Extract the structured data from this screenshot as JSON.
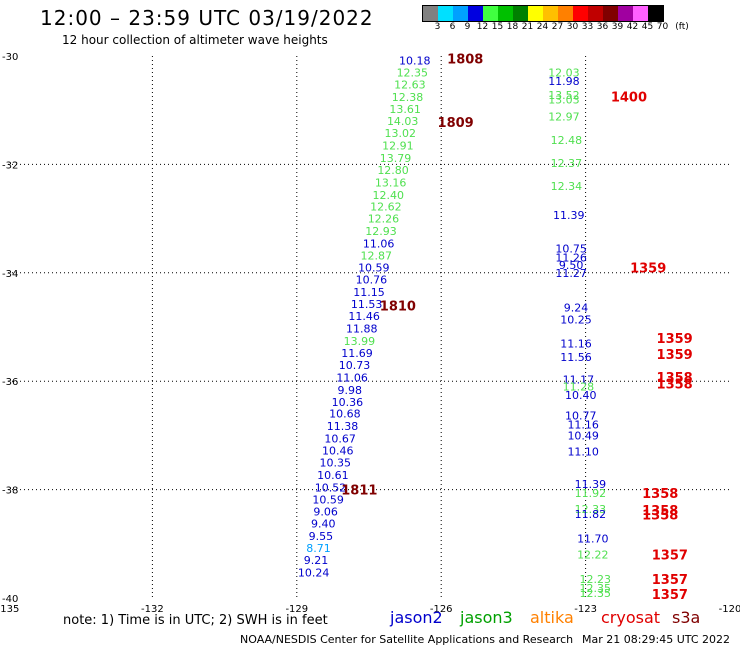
{
  "header": {
    "title": "12:00 – 23:59 UTC 03/19/2022",
    "subtitle": "12 hour collection of altimeter wave heights"
  },
  "colorbar": {
    "unit": "(ft)",
    "labels": [
      "3",
      "6",
      "9",
      "12",
      "15",
      "18",
      "21",
      "24",
      "27",
      "30",
      "33",
      "36",
      "39",
      "42",
      "45",
      "70"
    ],
    "colors": [
      "#808080",
      "#00e0ff",
      "#00a0ff",
      "#0000e0",
      "#40ff40",
      "#00c000",
      "#008000",
      "#ffff00",
      "#ffc000",
      "#ff8000",
      "#ff0000",
      "#c00000",
      "#800000",
      "#a000a0",
      "#ff60ff",
      "#000000"
    ]
  },
  "footer": {
    "note": "note:  1) Time is in UTC;  2) SWH is in feet",
    "center": "NOAA/NESDIS Center for Satellite Applications and Research",
    "timestamp": "Mar 21 08:29:45 UTC 2022"
  },
  "legend": [
    {
      "name": "jason2",
      "color": "#0000cc"
    },
    {
      "name": "jason3",
      "color": "#00a000"
    },
    {
      "name": "altika",
      "color": "#ff8000"
    },
    {
      "name": "cryosat",
      "color": "#e00000"
    },
    {
      "name": "s3a",
      "color": "#800000"
    }
  ],
  "chart_data": {
    "type": "scatter",
    "xlabel": "",
    "ylabel": "",
    "xlim": [
      -135,
      -120
    ],
    "ylim": [
      -40,
      -30
    ],
    "x_ticks": [
      -135,
      -132,
      -129,
      -126,
      -123,
      -120
    ],
    "y_ticks": [
      -30,
      -32,
      -34,
      -36,
      -38,
      -40
    ],
    "grid": true,
    "points": [
      {
        "lon": -126.55,
        "lat": -30.08,
        "text": "10.18",
        "color": "#0000cc"
      },
      {
        "lon": -126.6,
        "lat": -30.3,
        "text": "12.35",
        "color": "#50e050"
      },
      {
        "lon": -126.65,
        "lat": -30.53,
        "text": "12.63",
        "color": "#50e050"
      },
      {
        "lon": -126.7,
        "lat": -30.76,
        "text": "12.38",
        "color": "#50e050"
      },
      {
        "lon": -126.75,
        "lat": -30.98,
        "text": "13.61",
        "color": "#50e050"
      },
      {
        "lon": -126.8,
        "lat": -31.2,
        "text": "14.03",
        "color": "#50e050"
      },
      {
        "lon": -126.85,
        "lat": -31.42,
        "text": "13.02",
        "color": "#50e050"
      },
      {
        "lon": -126.9,
        "lat": -31.65,
        "text": "12.91",
        "color": "#50e050"
      },
      {
        "lon": -126.95,
        "lat": -31.88,
        "text": "13.79",
        "color": "#50e050"
      },
      {
        "lon": -127.0,
        "lat": -32.1,
        "text": "12.80",
        "color": "#50e050"
      },
      {
        "lon": -127.05,
        "lat": -32.33,
        "text": "13.16",
        "color": "#50e050"
      },
      {
        "lon": -127.1,
        "lat": -32.56,
        "text": "12.40",
        "color": "#50e050"
      },
      {
        "lon": -127.15,
        "lat": -32.78,
        "text": "12.62",
        "color": "#50e050"
      },
      {
        "lon": -127.2,
        "lat": -33.0,
        "text": "12.26",
        "color": "#50e050"
      },
      {
        "lon": -127.25,
        "lat": -33.23,
        "text": "12.93",
        "color": "#50e050"
      },
      {
        "lon": -127.3,
        "lat": -33.46,
        "text": "11.06",
        "color": "#0000cc"
      },
      {
        "lon": -127.35,
        "lat": -33.68,
        "text": "12.87",
        "color": "#50e050"
      },
      {
        "lon": -127.4,
        "lat": -33.9,
        "text": "10.59",
        "color": "#0000cc"
      },
      {
        "lon": -127.45,
        "lat": -34.12,
        "text": "10.76",
        "color": "#0000cc"
      },
      {
        "lon": -127.5,
        "lat": -34.35,
        "text": "11.15",
        "color": "#0000cc"
      },
      {
        "lon": -127.55,
        "lat": -34.58,
        "text": "11.53",
        "color": "#0000cc"
      },
      {
        "lon": -127.6,
        "lat": -34.8,
        "text": "11.46",
        "color": "#0000cc"
      },
      {
        "lon": -127.65,
        "lat": -35.03,
        "text": "11.88",
        "color": "#0000cc"
      },
      {
        "lon": -127.7,
        "lat": -35.26,
        "text": "13.99",
        "color": "#50e050"
      },
      {
        "lon": -127.75,
        "lat": -35.48,
        "text": "11.69",
        "color": "#0000cc"
      },
      {
        "lon": -127.8,
        "lat": -35.7,
        "text": "10.73",
        "color": "#0000cc"
      },
      {
        "lon": -127.85,
        "lat": -35.93,
        "text": "11.06",
        "color": "#0000cc"
      },
      {
        "lon": -127.9,
        "lat": -36.16,
        "text": "9.98",
        "color": "#0000cc"
      },
      {
        "lon": -127.95,
        "lat": -36.38,
        "text": "10.36",
        "color": "#0000cc"
      },
      {
        "lon": -128.0,
        "lat": -36.6,
        "text": "10.68",
        "color": "#0000cc"
      },
      {
        "lon": -128.05,
        "lat": -36.83,
        "text": "11.38",
        "color": "#0000cc"
      },
      {
        "lon": -128.1,
        "lat": -37.06,
        "text": "10.67",
        "color": "#0000cc"
      },
      {
        "lon": -128.15,
        "lat": -37.28,
        "text": "10.46",
        "color": "#0000cc"
      },
      {
        "lon": -128.2,
        "lat": -37.5,
        "text": "10.35",
        "color": "#0000cc"
      },
      {
        "lon": -128.25,
        "lat": -37.73,
        "text": "10.61",
        "color": "#0000cc"
      },
      {
        "lon": -128.3,
        "lat": -37.96,
        "text": "10.52",
        "color": "#0000cc"
      },
      {
        "lon": -128.35,
        "lat": -38.18,
        "text": "10.59",
        "color": "#0000cc"
      },
      {
        "lon": -128.4,
        "lat": -38.4,
        "text": "9.06",
        "color": "#0000cc"
      },
      {
        "lon": -128.45,
        "lat": -38.63,
        "text": "9.40",
        "color": "#0000cc"
      },
      {
        "lon": -128.5,
        "lat": -38.86,
        "text": "9.55",
        "color": "#0000cc"
      },
      {
        "lon": -128.55,
        "lat": -39.08,
        "text": "8.71",
        "color": "#00a0ff"
      },
      {
        "lon": -128.6,
        "lat": -39.3,
        "text": "9.21",
        "color": "#0000cc"
      },
      {
        "lon": -128.65,
        "lat": -39.53,
        "text": "10.24",
        "color": "#0000cc"
      },
      {
        "lon": -123.45,
        "lat": -30.3,
        "text": "12.03",
        "color": "#50e050"
      },
      {
        "lon": -123.45,
        "lat": -30.46,
        "text": "11.98",
        "color": "#0000cc"
      },
      {
        "lon": -123.45,
        "lat": -30.72,
        "text": "13.52",
        "color": "#50e050"
      },
      {
        "lon": -123.45,
        "lat": -30.8,
        "text": "13.03",
        "color": "#50e050"
      },
      {
        "lon": -123.45,
        "lat": -31.12,
        "text": "12.97",
        "color": "#50e050"
      },
      {
        "lon": -123.4,
        "lat": -31.55,
        "text": "12.48",
        "color": "#50e050"
      },
      {
        "lon": -123.4,
        "lat": -31.97,
        "text": "12.37",
        "color": "#50e050"
      },
      {
        "lon": -123.4,
        "lat": -32.4,
        "text": "12.34",
        "color": "#50e050"
      },
      {
        "lon": -123.35,
        "lat": -32.93,
        "text": "11.39",
        "color": "#0000cc"
      },
      {
        "lon": -123.3,
        "lat": -33.55,
        "text": "10.75",
        "color": "#0000cc"
      },
      {
        "lon": -123.3,
        "lat": -33.72,
        "text": "11.26",
        "color": "#0000cc"
      },
      {
        "lon": -123.3,
        "lat": -33.86,
        "text": "9.50",
        "color": "#0000cc"
      },
      {
        "lon": -123.3,
        "lat": -34.0,
        "text": "11.27",
        "color": "#0000cc"
      },
      {
        "lon": -123.2,
        "lat": -34.64,
        "text": "9.24",
        "color": "#0000cc"
      },
      {
        "lon": -123.2,
        "lat": -34.86,
        "text": "10.25",
        "color": "#0000cc"
      },
      {
        "lon": -123.2,
        "lat": -35.3,
        "text": "11.16",
        "color": "#0000cc"
      },
      {
        "lon": -123.2,
        "lat": -35.55,
        "text": "11.56",
        "color": "#0000cc"
      },
      {
        "lon": -123.15,
        "lat": -35.97,
        "text": "11.17",
        "color": "#0000cc"
      },
      {
        "lon": -123.15,
        "lat": -36.1,
        "text": "11.28",
        "color": "#50e050"
      },
      {
        "lon": -123.1,
        "lat": -36.25,
        "text": "10.40",
        "color": "#0000cc"
      },
      {
        "lon": -123.1,
        "lat": -36.63,
        "text": "10.77",
        "color": "#0000cc"
      },
      {
        "lon": -123.05,
        "lat": -36.8,
        "text": "11.16",
        "color": "#0000cc"
      },
      {
        "lon": -123.05,
        "lat": -37.0,
        "text": "10.49",
        "color": "#0000cc"
      },
      {
        "lon": -123.05,
        "lat": -37.3,
        "text": "11.10",
        "color": "#0000cc"
      },
      {
        "lon": -122.9,
        "lat": -37.9,
        "text": "11.39",
        "color": "#0000cc"
      },
      {
        "lon": -122.9,
        "lat": -38.06,
        "text": "11.92",
        "color": "#50e050"
      },
      {
        "lon": -122.9,
        "lat": -38.36,
        "text": "12.33",
        "color": "#50e050"
      },
      {
        "lon": -122.9,
        "lat": -38.45,
        "text": "11.82",
        "color": "#0000cc"
      },
      {
        "lon": -122.85,
        "lat": -38.9,
        "text": "11.70",
        "color": "#0000cc"
      },
      {
        "lon": -122.85,
        "lat": -39.2,
        "text": "12.22",
        "color": "#50e050"
      },
      {
        "lon": -122.8,
        "lat": -39.65,
        "text": "12.23",
        "color": "#50e050"
      },
      {
        "lon": -122.8,
        "lat": -39.82,
        "text": "12.35",
        "color": "#50e050"
      },
      {
        "lon": -122.8,
        "lat": -39.91,
        "text": "12.35",
        "color": "#50e050"
      }
    ],
    "time_labels": [
      {
        "lon": -125.5,
        "lat": -30.05,
        "text": "1808",
        "color": "#800000"
      },
      {
        "lon": -125.7,
        "lat": -31.22,
        "text": "1809",
        "color": "#800000"
      },
      {
        "lon": -126.9,
        "lat": -34.6,
        "text": "1810",
        "color": "#800000"
      },
      {
        "lon": -127.7,
        "lat": -38.0,
        "text": "1811",
        "color": "#800000"
      },
      {
        "lon": -122.1,
        "lat": -30.75,
        "text": "1400",
        "color": "#e00000"
      },
      {
        "lon": -121.7,
        "lat": -33.9,
        "text": "1359",
        "color": "#e00000"
      },
      {
        "lon": -121.15,
        "lat": -35.2,
        "text": "1359",
        "color": "#e00000"
      },
      {
        "lon": -121.15,
        "lat": -35.5,
        "text": "1359",
        "color": "#e00000"
      },
      {
        "lon": -121.15,
        "lat": -35.92,
        "text": "1358",
        "color": "#e00000"
      },
      {
        "lon": -121.15,
        "lat": -36.04,
        "text": "1358",
        "color": "#e00000"
      },
      {
        "lon": -121.45,
        "lat": -38.06,
        "text": "1358",
        "color": "#e00000"
      },
      {
        "lon": -121.45,
        "lat": -38.38,
        "text": "1358",
        "color": "#e00000"
      },
      {
        "lon": -121.45,
        "lat": -38.46,
        "text": "1358",
        "color": "#e00000"
      },
      {
        "lon": -121.25,
        "lat": -39.2,
        "text": "1357",
        "color": "#e00000"
      },
      {
        "lon": -121.25,
        "lat": -39.65,
        "text": "1357",
        "color": "#e00000"
      },
      {
        "lon": -121.25,
        "lat": -39.93,
        "text": "1357",
        "color": "#e00000"
      }
    ]
  }
}
